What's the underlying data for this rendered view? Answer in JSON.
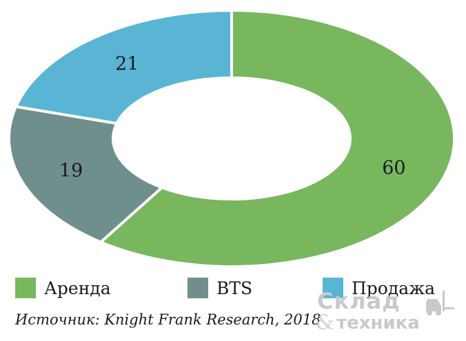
{
  "chart_data": {
    "type": "pie",
    "variant": "donut",
    "categories": [
      "Аренда",
      "BTS",
      "Продажа"
    ],
    "values": [
      60,
      19,
      21
    ],
    "data_labels": [
      "60",
      "19",
      "21"
    ],
    "colors": [
      "#78b75e",
      "#6f8f8d",
      "#5ab5d5"
    ],
    "legend": {
      "position": "bottom"
    }
  },
  "legend": {
    "items": [
      {
        "label": "Аренда",
        "color": "#78b75e"
      },
      {
        "label": "BTS",
        "color": "#6f8f8d"
      },
      {
        "label": "Продажа",
        "color": "#5ab5d5"
      }
    ]
  },
  "source": "Источник: Knight Frank Research, 2018",
  "watermark": {
    "line1": "Склад",
    "amp": "&",
    "line2": "техника",
    "icon": "forklift-icon"
  }
}
